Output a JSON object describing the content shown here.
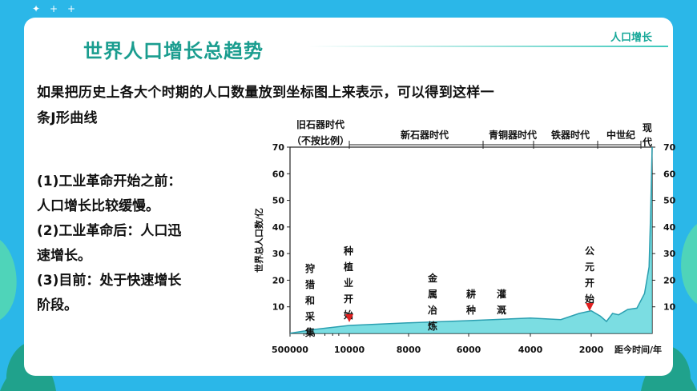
{
  "header": {
    "title": "世界人口增长总趋势",
    "tag": "人口增长"
  },
  "intro": {
    "line1": "如果把历史上各大个时期的人口数量放到坐标图上来表示，可以得到这样一",
    "line2": "条J形曲线"
  },
  "points": [
    "(1)工业革命开始之前：",
    "人口增长比较缓慢。",
    "(2)工业革命后：人口迅",
    "速增长。",
    "(3)目前：处于快速增长",
    "阶段。"
  ],
  "chart_data": {
    "type": "line",
    "ylabel": "世界总人口数/亿",
    "xlabel": "距今时间/年",
    "ylim": [
      0,
      70
    ],
    "yticks": [
      "10",
      "20",
      "30",
      "40",
      "50",
      "60",
      "70"
    ],
    "xticks": [
      "500000",
      "10000",
      "8000",
      "6000",
      "4000",
      "2000"
    ],
    "eras": [
      "旧石器时代",
      "（不按比例）",
      "新石器时代",
      "青铜器时代",
      "铁器时代",
      "中世纪",
      "现代"
    ],
    "annotations": [
      "狩猎和采集",
      "种植业开始",
      "金属冶炼",
      "耕种",
      "灌溉",
      "公元开始"
    ],
    "series": [
      {
        "x": [
          500000,
          100000,
          10000,
          8000,
          6000,
          4000,
          3000,
          2400,
          2000,
          1700,
          1500,
          1300,
          1100,
          800,
          500,
          250,
          100,
          50,
          0
        ],
        "y": [
          0.1,
          1.5,
          3.0,
          4.0,
          4.8,
          5.8,
          5.2,
          7.5,
          8.5,
          6.5,
          4.5,
          7.5,
          7.0,
          9.0,
          9.5,
          15,
          25,
          45,
          70
        ]
      }
    ]
  }
}
